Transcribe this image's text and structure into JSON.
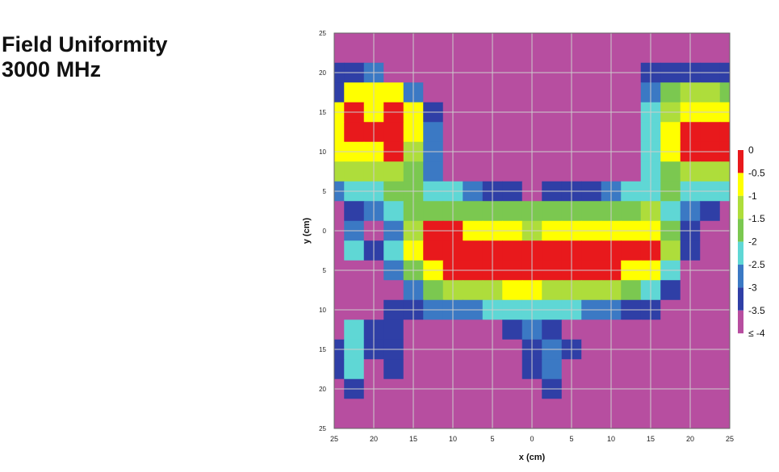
{
  "title": {
    "line1": "Field Uniformity",
    "line2": "3000 MHz"
  },
  "chart_data": {
    "type": "heatmap",
    "title": "Field Uniformity 3000 MHz",
    "xlabel": "x (cm)",
    "ylabel": "y (cm)",
    "x_tick_labels": [
      "25",
      "20",
      "15",
      "10",
      "5",
      "0",
      "5",
      "10",
      "15",
      "20",
      "25"
    ],
    "y_tick_labels": [
      "25",
      "20",
      "15",
      "10",
      "5",
      "0",
      "5",
      "10",
      "15",
      "20",
      "25"
    ],
    "xlim": [
      -25,
      25
    ],
    "ylim": [
      -25,
      25
    ],
    "grid": true,
    "legend_position": "right",
    "colorbar": {
      "labels": [
        "0",
        "-0.5",
        "-1",
        "-1.5",
        "-2",
        "-2.5",
        "-3",
        "-3.5",
        "≤ -4"
      ],
      "colors": [
        "#e8191c",
        "#ffff00",
        "#aedd3b",
        "#7bc850",
        "#5fd7d5",
        "#3b79c4",
        "#2f3fa6",
        "#b74ea0"
      ]
    },
    "levels_db": [
      0,
      -0.5,
      -1,
      -1.5,
      -2,
      -2.5,
      -3,
      -3.5,
      -4
    ],
    "values_db": [
      [
        -4,
        -4,
        -4,
        -4,
        -4,
        -4,
        -4,
        -4,
        -4,
        -4,
        -4,
        -4,
        -4,
        -4,
        -4,
        -4,
        -4,
        -4,
        -4,
        -4,
        -4
      ],
      [
        -3.6,
        -3.6,
        -4,
        -4,
        -4,
        -4,
        -4,
        -4,
        -4,
        -4,
        -4,
        -4,
        -4,
        -4,
        -4,
        -4,
        -4,
        -4,
        -4,
        -4,
        -4
      ],
      [
        -3.2,
        -3.1,
        -3.0,
        -4,
        -4,
        -4,
        -4,
        -4,
        -4,
        -4,
        -4,
        -4,
        -4,
        -4,
        -4,
        -4,
        -3.4,
        -3.2,
        -3.3,
        -3.4,
        -3.4
      ],
      [
        -3.3,
        -1.0,
        -0.6,
        -1.0,
        -3.0,
        -4,
        -4,
        -4,
        -4,
        -4,
        -4,
        -4,
        -4,
        -4,
        -4,
        -4,
        -3.0,
        -2.0,
        -1.5,
        -1.5,
        -1.6
      ],
      [
        -1.0,
        0,
        -1.0,
        0,
        -1.0,
        -3.5,
        -4,
        -4,
        -4,
        -4,
        -4,
        -4,
        -4,
        -4,
        -4,
        -4,
        -2.5,
        -1.2,
        -0.7,
        -0.6,
        -0.7
      ],
      [
        -0.6,
        0,
        0,
        0,
        -0.9,
        -3.0,
        -4,
        -4,
        -4,
        -4,
        -4,
        -4,
        -4,
        -4,
        -4,
        -4,
        -2.2,
        -0.8,
        0,
        0,
        0
      ],
      [
        -1.0,
        -0.6,
        -1.0,
        0,
        -1.2,
        -2.9,
        -4,
        -4,
        -4,
        -4,
        -4,
        -4,
        -4,
        -4,
        -4,
        -4,
        -2.2,
        -1.0,
        0,
        0,
        0
      ],
      [
        -1.5,
        -1.5,
        -1.5,
        -1.5,
        -1.9,
        -2.6,
        -3.8,
        -4,
        -4,
        -4,
        -4,
        -4,
        -4,
        -4,
        -4,
        -4,
        -2.3,
        -1.6,
        -1.3,
        -1.1,
        -1.1
      ],
      [
        -3.0,
        -2.2,
        -2.1,
        -1.8,
        -1.8,
        -2.1,
        -2.5,
        -3.0,
        -3.4,
        -3.5,
        -3.6,
        -3.5,
        -3.4,
        -3.2,
        -3.0,
        -2.5,
        -2.1,
        -2.0,
        -2.1,
        -2.2,
        -2.2
      ],
      [
        -4,
        -3.3,
        -2.9,
        -2.3,
        -1.8,
        -1.6,
        -1.6,
        -1.6,
        -1.7,
        -1.9,
        -2.0,
        -2.0,
        -1.9,
        -1.8,
        -1.7,
        -1.6,
        -1.5,
        -2.1,
        -2.9,
        -3.5,
        -4
      ],
      [
        -4,
        -3.0,
        -3.6,
        -2.6,
        -1.3,
        -0.5,
        -0.3,
        -0.8,
        -1.0,
        -1.0,
        -1.1,
        -1.0,
        -1.0,
        -1.0,
        -0.9,
        -0.8,
        -0.8,
        -1.8,
        -3.2,
        -4,
        -4
      ],
      [
        -4,
        -2.5,
        -3.5,
        -2.5,
        -0.9,
        0,
        0,
        0,
        0,
        0,
        0,
        0,
        0,
        0,
        0,
        0,
        0,
        -1.5,
        -3.3,
        -4,
        -4
      ],
      [
        -4,
        -3.6,
        -3.7,
        -3.0,
        -1.6,
        -0.8,
        0,
        0,
        0,
        0,
        0,
        0,
        0,
        0,
        0,
        -0.6,
        -1.0,
        -2.1,
        -3.7,
        -4,
        -4
      ],
      [
        -4,
        -3.8,
        -3.8,
        -3.7,
        -2.6,
        -1.8,
        -1.3,
        -1.2,
        -1.1,
        -0.9,
        -1.0,
        -1.1,
        -1.2,
        -1.3,
        -1.4,
        -1.7,
        -2.3,
        -3.2,
        -4,
        -4,
        -4
      ],
      [
        -4,
        -4,
        -3.8,
        -3.5,
        -3.2,
        -3.0,
        -2.8,
        -2.6,
        -2.4,
        -2.2,
        -2.2,
        -2.3,
        -2.4,
        -2.6,
        -2.9,
        -3.1,
        -3.5,
        -4,
        -4,
        -4,
        -4
      ],
      [
        -3.6,
        -2.3,
        -3.5,
        -3.4,
        -4,
        -4,
        -4,
        -4,
        -3.7,
        -3.4,
        -3.0,
        -3.2,
        -3.7,
        -3.9,
        -4,
        -4,
        -4,
        -4,
        -4,
        -4,
        -4
      ],
      [
        -3.5,
        -2.4,
        -3.4,
        -3.3,
        -4,
        -4,
        -4,
        -4,
        -4,
        -3.8,
        -3.3,
        -3.0,
        -3.5,
        -4,
        -4,
        -4,
        -4,
        -4,
        -4,
        -4,
        -4
      ],
      [
        -3.5,
        -2.5,
        -3.6,
        -3.5,
        -4,
        -4,
        -4,
        -4,
        -4,
        -4,
        -3.5,
        -2.8,
        -3.6,
        -4,
        -4,
        -4,
        -4,
        -4,
        -4,
        -4,
        -4
      ],
      [
        -4,
        -3.4,
        -4,
        -4,
        -4,
        -4,
        -4,
        -4,
        -4,
        -4,
        -3.8,
        -3.4,
        -4,
        -4,
        -4,
        -4,
        -4,
        -4,
        -4,
        -4,
        -4
      ],
      [
        -4,
        -4,
        -4,
        -4,
        -4,
        -4,
        -4,
        -4,
        -4,
        -4,
        -4,
        -4,
        -4,
        -4,
        -4,
        -4,
        -4,
        -4,
        -4,
        -4,
        -4
      ],
      [
        -4,
        -4,
        -4,
        -4,
        -4,
        -4,
        -4,
        -4,
        -4,
        -4,
        -4,
        -4,
        -4,
        -4,
        -4,
        -4,
        -4,
        -4,
        -4,
        -4,
        -4
      ]
    ]
  }
}
